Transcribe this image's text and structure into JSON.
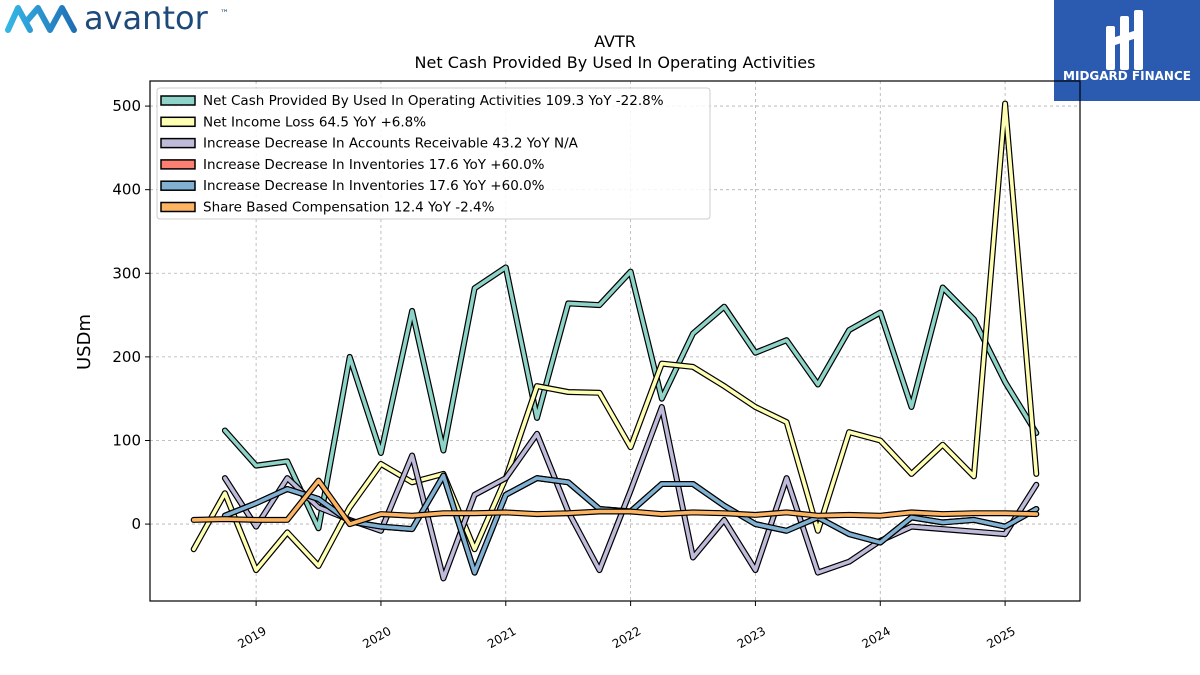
{
  "branding": {
    "left_logo_text": "avantor",
    "left_logo_tm": "™",
    "right_logo_text": "MIDGARD FINANCE"
  },
  "chart_data": {
    "type": "line",
    "title": "AVTR",
    "subtitle": "Net Cash Provided By Used In Operating Activities",
    "ylabel": "USDm",
    "xlabel": "",
    "ylim": [
      -92,
      530
    ],
    "yticks": [
      0,
      100,
      200,
      300,
      400,
      500
    ],
    "xlim": [
      2018.15,
      2025.6
    ],
    "xticks": [
      2019,
      2020,
      2021,
      2022,
      2023,
      2024,
      2025
    ],
    "xtick_labels": [
      "2019",
      "2020",
      "2021",
      "2022",
      "2023",
      "2024",
      "2025"
    ],
    "grid": true,
    "legend_position": "top-left",
    "series": [
      {
        "name": "Net Cash Provided By Used In Operating Activities  109.3 YoY -22.8%",
        "color": "#8dd3c7",
        "x": [
          2018.75,
          2019.0,
          2019.25,
          2019.5,
          2019.75,
          2020.0,
          2020.25,
          2020.5,
          2020.75,
          2021.0,
          2021.25,
          2021.5,
          2021.75,
          2022.0,
          2022.25,
          2022.5,
          2022.75,
          2023.0,
          2023.25,
          2023.5,
          2023.75,
          2024.0,
          2024.25,
          2024.5,
          2024.75,
          2025.0,
          2025.25
        ],
        "y": [
          112,
          70,
          75,
          -5,
          200,
          85,
          255,
          88,
          282,
          307,
          127,
          264,
          262,
          302,
          150,
          228,
          260,
          205,
          220,
          167,
          232,
          253,
          140,
          283,
          245,
          170,
          109
        ]
      },
      {
        "name": "Net Income Loss  64.5 YoY +6.8%",
        "color": "#ffffb3",
        "x": [
          2018.5,
          2018.75,
          2019.0,
          2019.25,
          2019.5,
          2019.75,
          2020.0,
          2020.25,
          2020.5,
          2020.75,
          2021.0,
          2021.25,
          2021.5,
          2021.75,
          2022.0,
          2022.25,
          2022.5,
          2022.75,
          2023.0,
          2023.25,
          2023.5,
          2023.75,
          2024.0,
          2024.25,
          2024.5,
          2024.75,
          2025.0,
          2025.25
        ],
        "y": [
          -30,
          37,
          -55,
          -10,
          -50,
          20,
          72,
          50,
          60,
          -30,
          55,
          165,
          158,
          157,
          92,
          192,
          188,
          165,
          140,
          122,
          -8,
          110,
          100,
          60,
          95,
          57,
          503,
          60
        ]
      },
      {
        "name": "Increase Decrease In Accounts Receivable  43.2 YoY N/A",
        "color": "#bebada",
        "x": [
          2018.75,
          2019.0,
          2019.25,
          2019.5,
          2019.75,
          2020.0,
          2020.25,
          2020.5,
          2020.75,
          2021.0,
          2021.25,
          2021.5,
          2021.75,
          2022.0,
          2022.25,
          2022.5,
          2022.75,
          2023.0,
          2023.25,
          2023.5,
          2023.75,
          2024.0,
          2024.25,
          2024.5,
          2024.75,
          2025.0,
          2025.25
        ],
        "y": [
          55,
          -3,
          55,
          20,
          5,
          -8,
          82,
          -65,
          35,
          55,
          108,
          15,
          -55,
          40,
          140,
          -40,
          5,
          -55,
          55,
          -58,
          -45,
          -20,
          -3,
          -6,
          -9,
          -12,
          47
        ]
      },
      {
        "name": "Increase Decrease In Inventories  17.6 YoY +60.0%",
        "color": "#fb8072",
        "x": [
          2018.75,
          2019.0,
          2019.25,
          2019.5,
          2019.75,
          2020.0,
          2020.25,
          2020.5,
          2020.75,
          2021.0,
          2021.25,
          2021.5,
          2021.75,
          2022.0,
          2022.25,
          2022.5,
          2022.75,
          2023.0,
          2023.25,
          2023.5,
          2023.75,
          2024.0,
          2024.25,
          2024.5,
          2024.75,
          2025.0,
          2025.25
        ],
        "y": [
          10,
          25,
          42,
          30,
          3,
          -3,
          -6,
          58,
          -58,
          35,
          55,
          50,
          18,
          15,
          48,
          48,
          22,
          0,
          -8,
          8,
          -12,
          -22,
          8,
          2,
          5,
          -3,
          18
        ]
      },
      {
        "name": "Increase Decrease In Inventories  17.6 YoY +60.0%",
        "color": "#80b1d3",
        "x": [
          2018.75,
          2019.0,
          2019.25,
          2019.5,
          2019.75,
          2020.0,
          2020.25,
          2020.5,
          2020.75,
          2021.0,
          2021.25,
          2021.5,
          2021.75,
          2022.0,
          2022.25,
          2022.5,
          2022.75,
          2023.0,
          2023.25,
          2023.5,
          2023.75,
          2024.0,
          2024.25,
          2024.5,
          2024.75,
          2025.0,
          2025.25
        ],
        "y": [
          10,
          25,
          42,
          30,
          3,
          -3,
          -6,
          58,
          -58,
          35,
          55,
          50,
          18,
          15,
          48,
          48,
          22,
          0,
          -8,
          8,
          -12,
          -22,
          8,
          2,
          5,
          -3,
          18
        ]
      },
      {
        "name": "Share Based Compensation  12.4 YoY -2.4%",
        "color": "#fdb462",
        "x": [
          2018.5,
          2018.75,
          2019.0,
          2019.25,
          2019.5,
          2019.75,
          2020.0,
          2020.25,
          2020.5,
          2020.75,
          2021.0,
          2021.25,
          2021.5,
          2021.75,
          2022.0,
          2022.25,
          2022.5,
          2022.75,
          2023.0,
          2023.25,
          2023.5,
          2023.75,
          2024.0,
          2024.25,
          2024.5,
          2024.75,
          2025.0,
          2025.25
        ],
        "y": [
          5,
          6,
          5,
          5,
          52,
          0,
          12,
          10,
          13,
          13,
          14,
          12,
          13,
          15,
          15,
          12,
          14,
          13,
          11,
          14,
          10,
          11,
          10,
          14,
          12,
          13,
          13,
          12
        ]
      }
    ]
  }
}
